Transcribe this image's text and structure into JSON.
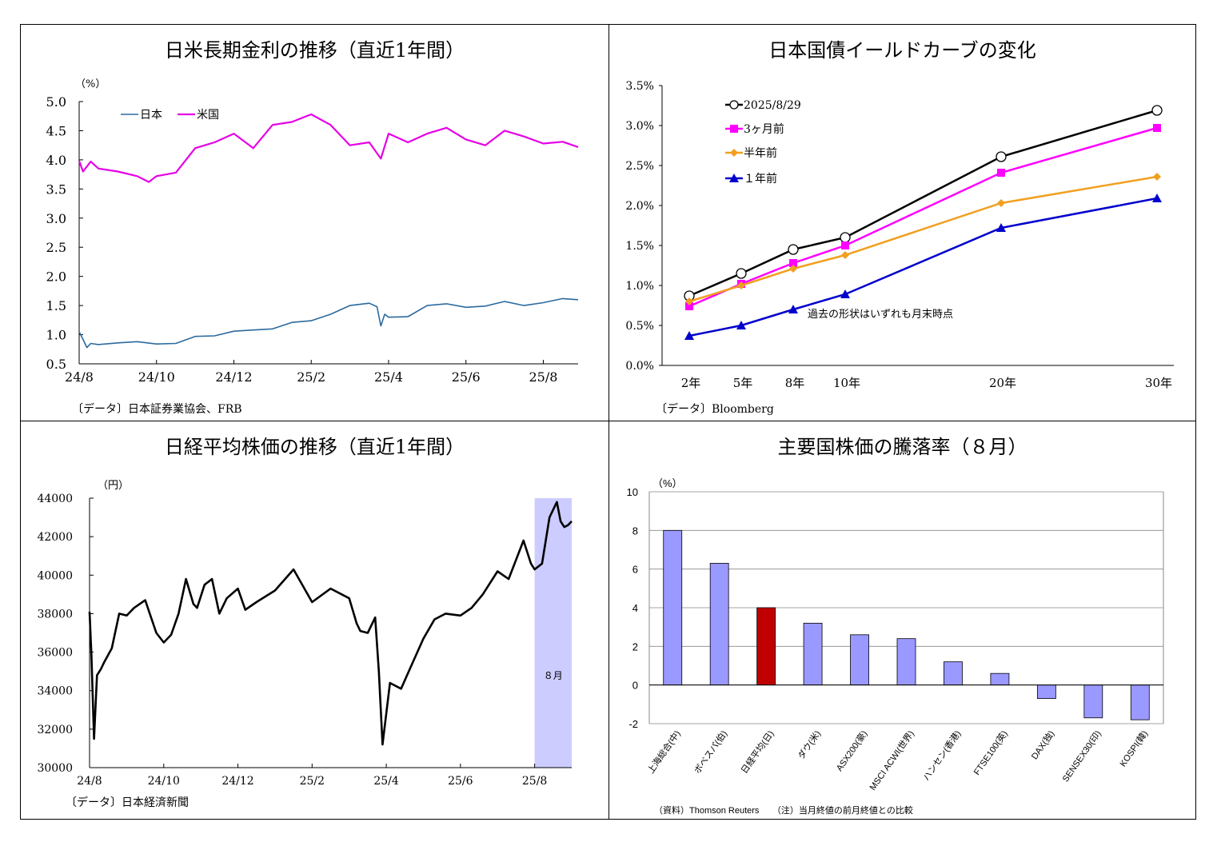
{
  "colors": {
    "japan": "#2b6a9e",
    "us": "#e600e6",
    "nikkei": "#000000",
    "bar": "#9999ff",
    "bar_highlight": "#c00000",
    "shade": "#ccccff",
    "c2025": "#000000",
    "c3m": "#ff00ff",
    "c6m": "#f0a020",
    "c1y": "#0000cc"
  },
  "panel1": {
    "title": "日米長期金利の推移（直近1年間）",
    "unit": "（%）",
    "source": "〔データ〕日本証券業協会、FRB",
    "chart_data": {
      "type": "line",
      "ylim": [
        0.5,
        5.0
      ],
      "yticks": [
        "0.5",
        "1.0",
        "1.5",
        "2.0",
        "2.5",
        "3.0",
        "3.5",
        "4.0",
        "4.5",
        "5.0"
      ],
      "xticks": [
        "24/8",
        "24/10",
        "24/12",
        "25/2",
        "25/4",
        "25/6",
        "25/8"
      ],
      "xlim": [
        0,
        12.9
      ],
      "legend": [
        "日本",
        "米国"
      ],
      "series": [
        {
          "name": "日本",
          "x": [
            0,
            0.1,
            0.2,
            0.3,
            0.5,
            1,
            1.5,
            2,
            2.5,
            3,
            3.5,
            4,
            4.5,
            5,
            5.5,
            6,
            6.5,
            7,
            7.5,
            7.7,
            7.8,
            7.9,
            8,
            8.5,
            9,
            9.5,
            10,
            10.5,
            11,
            11.5,
            12,
            12.5,
            12.9
          ],
          "values": [
            1.05,
            0.92,
            0.78,
            0.85,
            0.83,
            0.86,
            0.88,
            0.84,
            0.85,
            0.97,
            0.98,
            1.06,
            1.08,
            1.1,
            1.21,
            1.24,
            1.35,
            1.5,
            1.54,
            1.48,
            1.15,
            1.35,
            1.3,
            1.31,
            1.5,
            1.53,
            1.47,
            1.49,
            1.57,
            1.5,
            1.55,
            1.62,
            1.6
          ]
        },
        {
          "name": "米国",
          "x": [
            0,
            0.1,
            0.3,
            0.5,
            1,
            1.5,
            1.8,
            2,
            2.5,
            3,
            3.5,
            4,
            4.5,
            5,
            5.5,
            6,
            6.5,
            7,
            7.5,
            7.8,
            8,
            8.5,
            9,
            9.5,
            10,
            10.5,
            11,
            11.5,
            12,
            12.5,
            12.9
          ],
          "values": [
            3.98,
            3.8,
            3.97,
            3.85,
            3.8,
            3.72,
            3.62,
            3.72,
            3.78,
            4.2,
            4.3,
            4.45,
            4.2,
            4.6,
            4.65,
            4.78,
            4.6,
            4.25,
            4.3,
            4.02,
            4.45,
            4.3,
            4.45,
            4.55,
            4.35,
            4.25,
            4.5,
            4.4,
            4.28,
            4.31,
            4.22
          ]
        }
      ]
    }
  },
  "panel2": {
    "title": "日本国債イールドカーブの変化",
    "source": "〔データ〕Bloomberg",
    "note": "過去の形状はいずれも月末時点",
    "chart_data": {
      "type": "line",
      "ylim": [
        0,
        3.5
      ],
      "yticks": [
        "0.0%",
        "0.5%",
        "1.0%",
        "1.5%",
        "2.0%",
        "2.5%",
        "3.0%",
        "3.5%"
      ],
      "x": [
        2,
        5,
        8,
        10,
        20,
        30
      ],
      "xticks": [
        "2年",
        "5年",
        "8年",
        "10年",
        "20年",
        "30年"
      ],
      "series": [
        {
          "name": "2025/8/29",
          "values": [
            0.87,
            1.15,
            1.45,
            1.6,
            2.61,
            3.19
          ]
        },
        {
          "name": "3ヶ月前",
          "values": [
            0.74,
            1.02,
            1.28,
            1.5,
            2.41,
            2.97
          ]
        },
        {
          "name": "半年前",
          "values": [
            0.8,
            1.0,
            1.21,
            1.38,
            2.03,
            2.36
          ]
        },
        {
          "name": "１年前",
          "values": [
            0.37,
            0.5,
            0.7,
            0.89,
            1.72,
            2.09
          ]
        }
      ]
    }
  },
  "panel3": {
    "title": "日経平均株価の推移（直近1年間）",
    "unit": "（円）",
    "source": "〔データ〕日本経済新聞",
    "shade_label": "８月",
    "chart_data": {
      "type": "line",
      "ylim": [
        30000,
        44000
      ],
      "yticks": [
        "30000",
        "32000",
        "34000",
        "36000",
        "38000",
        "40000",
        "42000",
        "44000"
      ],
      "xticks": [
        "24/8",
        "24/10",
        "24/12",
        "25/2",
        "25/4",
        "25/6",
        "25/8"
      ],
      "xlim": [
        0,
        13
      ],
      "shade_range": [
        12,
        13
      ],
      "series": [
        {
          "name": "日経平均",
          "x": [
            0,
            0.05,
            0.12,
            0.2,
            0.3,
            0.4,
            0.6,
            0.8,
            1.0,
            1.2,
            1.5,
            1.8,
            2.0,
            2.2,
            2.4,
            2.6,
            2.8,
            2.9,
            3.1,
            3.3,
            3.5,
            3.7,
            4.0,
            4.2,
            4.5,
            5.0,
            5.5,
            6.0,
            6.5,
            7.0,
            7.2,
            7.3,
            7.5,
            7.7,
            7.8,
            7.9,
            8.1,
            8.4,
            8.7,
            9.0,
            9.3,
            9.6,
            10.0,
            10.3,
            10.6,
            11.0,
            11.3,
            11.7,
            11.9,
            12.0,
            12.2,
            12.4,
            12.6,
            12.7,
            12.8,
            12.9,
            13.0
          ],
          "values": [
            38100,
            35900,
            31500,
            34800,
            35100,
            35500,
            36200,
            38000,
            37900,
            38300,
            38700,
            37000,
            36500,
            36900,
            38000,
            39800,
            38500,
            38300,
            39500,
            39800,
            38000,
            38800,
            39300,
            38200,
            38600,
            39200,
            40300,
            38600,
            39300,
            38800,
            37500,
            37100,
            37000,
            37800,
            35000,
            31200,
            34400,
            34100,
            35400,
            36700,
            37700,
            38000,
            37900,
            38300,
            39000,
            40200,
            39800,
            41800,
            40600,
            40300,
            40600,
            43000,
            43800,
            42800,
            42500,
            42600,
            42800
          ]
        }
      ]
    }
  },
  "panel4": {
    "title": "主要国株価の騰落率（８月）",
    "unit": "（%）",
    "source": "（資料）Thomson Reuters　　（注）当月終値の前月終値との比較",
    "chart_data": {
      "type": "bar",
      "ylim": [
        -2,
        10
      ],
      "yticks": [
        "-2",
        "0",
        "2",
        "4",
        "6",
        "8",
        "10"
      ],
      "categories": [
        "上海総合(中)",
        "ボベスパ(伯)",
        "日経平均(日)",
        "ダウ(米)",
        "ASX200(豪)",
        "MSCI ACWI(世界)",
        "ハンセン(香港)",
        "FTSE100(英)",
        "DAX(独)",
        "SENSEX30(印)",
        "KOSPI(韓)"
      ],
      "values": [
        8.0,
        6.3,
        4.0,
        3.2,
        2.6,
        2.4,
        1.2,
        0.6,
        -0.7,
        -1.7,
        -1.8
      ],
      "highlight_index": 2
    }
  }
}
